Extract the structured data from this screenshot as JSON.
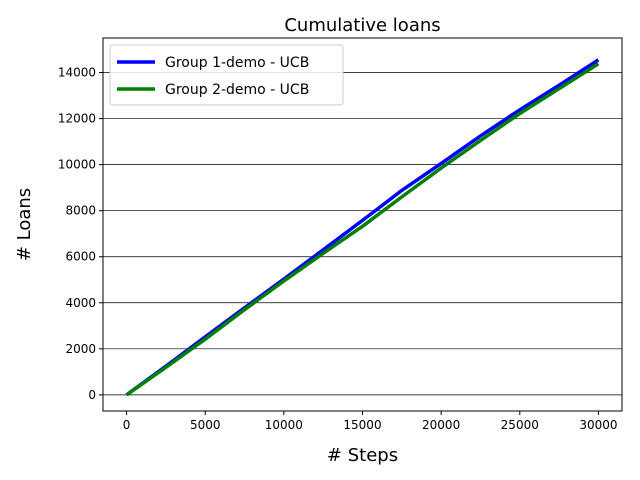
{
  "chart_data": {
    "type": "line",
    "title": "Cumulative loans",
    "xlabel": "# Steps",
    "ylabel": "# Loans",
    "xlim": [
      -1500,
      31500
    ],
    "ylim": [
      -700,
      15500
    ],
    "xticks": [
      0,
      5000,
      10000,
      15000,
      20000,
      25000,
      30000
    ],
    "yticks": [
      0,
      2000,
      4000,
      6000,
      8000,
      10000,
      12000,
      14000
    ],
    "grid": "horizontal",
    "legend_position": "top-left",
    "series": [
      {
        "name": "Group 1-demo - UCB",
        "color": "#0000ff",
        "x": [
          0,
          2500,
          5000,
          7500,
          10000,
          12500,
          15000,
          17500,
          20000,
          22500,
          25000,
          27500,
          30000
        ],
        "y": [
          0,
          1250,
          2520,
          3780,
          5030,
          6300,
          7580,
          8880,
          10050,
          11250,
          12380,
          13450,
          14550
        ]
      },
      {
        "name": "Group 2-demo - UCB",
        "color": "#008000",
        "x": [
          0,
          2500,
          5000,
          7500,
          10000,
          12500,
          15000,
          17500,
          20000,
          22500,
          25000,
          27500,
          30000
        ],
        "y": [
          0,
          1200,
          2420,
          3700,
          4950,
          6150,
          7320,
          8600,
          9850,
          11050,
          12220,
          13300,
          14380
        ]
      }
    ]
  }
}
